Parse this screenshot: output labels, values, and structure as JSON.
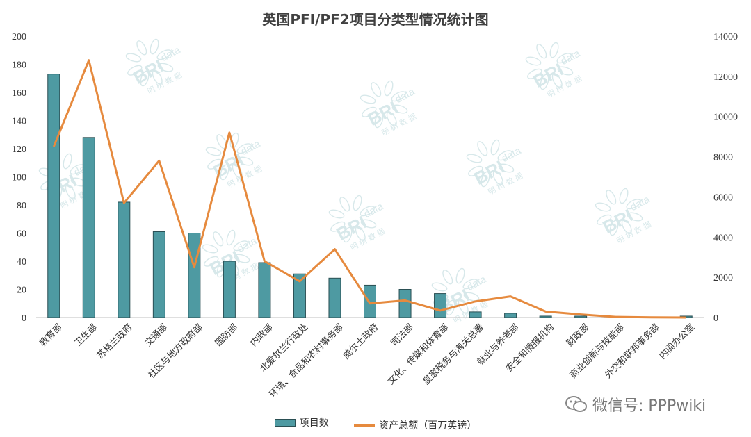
{
  "title": "英国PFI/PF2项目分类型情况统计图",
  "watermark": {
    "brand": "BRI",
    "brand_suffix": "data",
    "sub": "明 树 数 据"
  },
  "wechat_label": "微信号: PPPwiki",
  "colors": {
    "bar_fill": "#4e9aa2",
    "bar_stroke": "#2a4f53",
    "line": "#e68a3e",
    "grid": "#d9d9d9",
    "axis_text": "#333333"
  },
  "chart_data": {
    "type": "bar+line",
    "title": "英国PFI/PF2项目分类型情况统计图",
    "categories": [
      "教育部",
      "卫生部",
      "苏格兰政府",
      "交通部",
      "社区与地方政府部",
      "国防部",
      "内政部",
      "北爱尔兰行政处",
      "环境、食品和农村事务部",
      "威尔士政府",
      "司法部",
      "文化、传媒和体育部",
      "皇家税务与海关总署",
      "就业与养老部",
      "安全和情报机构",
      "财政部",
      "商业创新与技能部",
      "外交和联邦事务部",
      "内阁办公室"
    ],
    "series": [
      {
        "name": "项目数",
        "type": "bar",
        "axis": "left",
        "values": [
          173,
          128,
          82,
          61,
          60,
          40,
          39,
          31,
          28,
          23,
          20,
          17,
          4,
          3,
          1,
          1,
          0,
          0,
          1
        ]
      },
      {
        "name": "资产总额（百万英镑）",
        "type": "line",
        "axis": "right",
        "values": [
          8500,
          12800,
          5700,
          7800,
          2500,
          9200,
          2800,
          1800,
          3400,
          700,
          850,
          350,
          800,
          1050,
          300,
          150,
          30,
          10,
          0
        ]
      }
    ],
    "y_left": {
      "min": 0,
      "max": 200,
      "ticks": [
        0,
        20,
        40,
        60,
        80,
        100,
        120,
        140,
        160,
        180,
        200
      ]
    },
    "y_right": {
      "min": 0,
      "max": 14000,
      "ticks": [
        0,
        2000,
        4000,
        6000,
        8000,
        10000,
        12000,
        14000
      ]
    },
    "grid": false,
    "legend_position": "bottom"
  }
}
